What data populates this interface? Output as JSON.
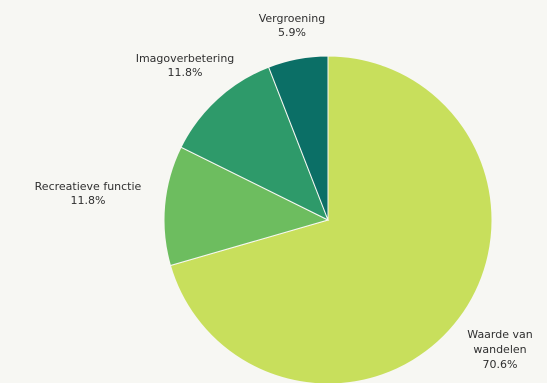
{
  "chart_data": {
    "type": "pie",
    "start_angle_deg": 0,
    "direction": "clockwise",
    "slices": [
      {
        "label": "Waarde van wandelen",
        "value_label": "70.6%",
        "value": 70.6,
        "color": "#c8df5c"
      },
      {
        "label": "Recreatieve functie",
        "value_label": "11.8%",
        "value": 11.8,
        "color": "#6dbd5f"
      },
      {
        "label": "Imagoverbetering",
        "value_label": "11.8%",
        "value": 11.8,
        "color": "#2e9a6a"
      },
      {
        "label": "Vergroening",
        "value_label": "5.9%",
        "value": 5.9,
        "color": "#0b6f66"
      }
    ]
  }
}
